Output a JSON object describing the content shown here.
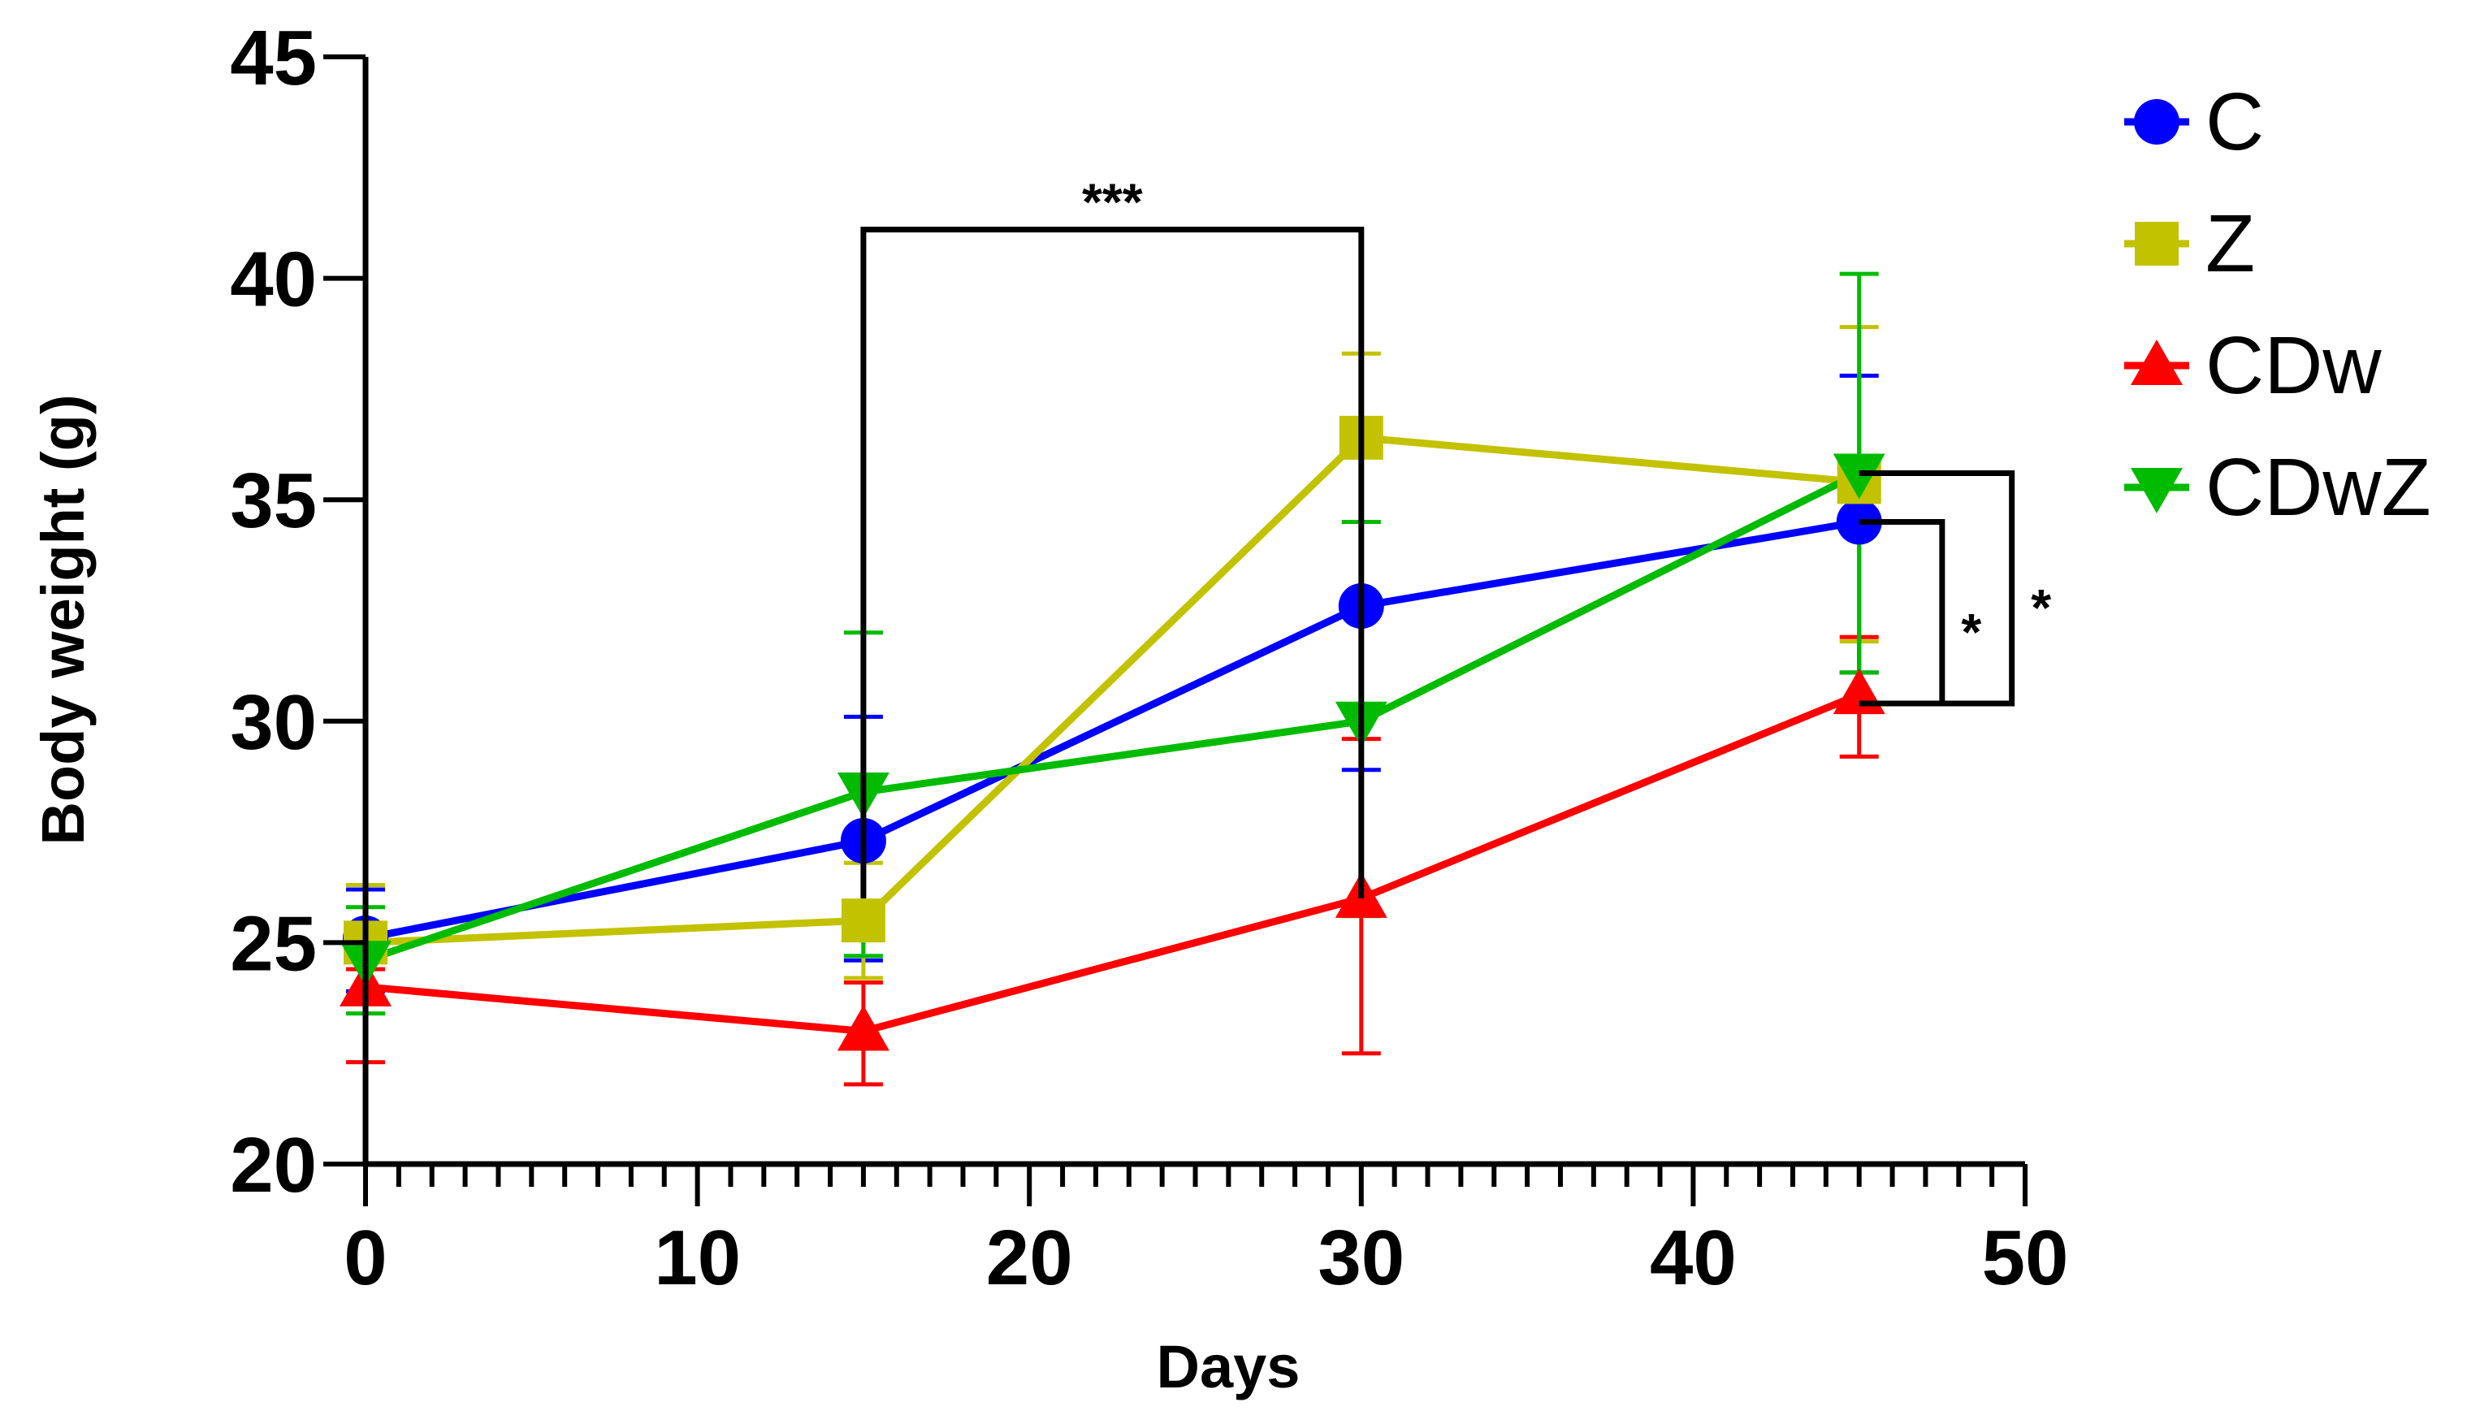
{
  "chart_data": {
    "type": "line",
    "xlabel": "Days",
    "ylabel": "Body weight (g)",
    "xlim": [
      0,
      50
    ],
    "ylim": [
      20,
      45
    ],
    "x_ticks": [
      0,
      10,
      20,
      30,
      40,
      50
    ],
    "x_tick_labels": [
      "0",
      "10",
      "20",
      "30",
      "40",
      "50"
    ],
    "x_minor_step": 1,
    "y_ticks": [
      20,
      25,
      30,
      35,
      40,
      45
    ],
    "y_tick_labels": [
      "20",
      "25",
      "30",
      "35",
      "40",
      "45"
    ],
    "legend_position": "top-right",
    "series": [
      {
        "name": "C",
        "color": "#0000ff",
        "marker": "circle",
        "x": [
          0,
          15,
          30,
          45
        ],
        "y": [
          25.1,
          27.3,
          32.6,
          34.5
        ],
        "err_lo": [
          1.2,
          2.7,
          3.7,
          3.4
        ],
        "err_hi": [
          1.1,
          2.8,
          3.6,
          3.3
        ]
      },
      {
        "name": "Z",
        "color": "#c2c200",
        "marker": "square",
        "x": [
          0,
          15,
          30,
          45
        ],
        "y": [
          25.0,
          25.5,
          36.4,
          35.4
        ],
        "err_lo": [
          1.3,
          1.3,
          1.9,
          3.6
        ],
        "err_hi": [
          1.3,
          1.3,
          1.9,
          3.5
        ]
      },
      {
        "name": "CDw",
        "color": "#ff0000",
        "marker": "triangle-up",
        "x": [
          0,
          15,
          30,
          45
        ],
        "y": [
          24.0,
          23.0,
          26.0,
          30.6
        ],
        "err_lo": [
          1.7,
          1.2,
          3.5,
          1.4
        ],
        "err_hi": [
          0.4,
          1.1,
          3.6,
          1.3
        ]
      },
      {
        "name": "CDwZ",
        "color": "#00bb00",
        "marker": "triangle-down",
        "x": [
          0,
          15,
          30,
          45
        ],
        "y": [
          24.6,
          28.4,
          30.0,
          35.6
        ],
        "err_lo": [
          1.2,
          3.7,
          4.4,
          4.5
        ],
        "err_hi": [
          1.2,
          3.6,
          4.5,
          4.5
        ]
      }
    ],
    "annotations": [
      {
        "label": "***",
        "x1": 15,
        "x2": 30,
        "y_low1": 26.0,
        "y_low2": 26.0,
        "y_top": 41.1
      },
      {
        "label": "*",
        "x1": 45,
        "x2": 47.5,
        "y_low1": 34.5,
        "y_low2": 30.4,
        "y_top": 34.5,
        "side": "right"
      },
      {
        "label": "*",
        "x1": 45,
        "x2": 49.6,
        "y_low1": 35.6,
        "y_low2": 30.4,
        "y_top": 35.6,
        "side": "right"
      }
    ]
  }
}
